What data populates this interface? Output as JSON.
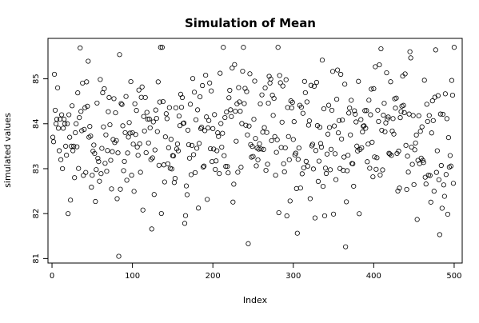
{
  "chart_data": {
    "type": "scatter",
    "title": "Simulation of Mean",
    "xlabel": "Index",
    "ylabel": "simulated values",
    "xlim": [
      -5,
      510
    ],
    "ylim": [
      80.9,
      85.9
    ],
    "x_ticks": [
      0,
      100,
      200,
      300,
      400,
      500
    ],
    "y_ticks": [
      81,
      82,
      83,
      84,
      85
    ],
    "grid": false,
    "point_style": "open-circle",
    "point_color": "#000000",
    "n_points": 500,
    "distribution_mean": 83.75,
    "y_sample": [
      83.7,
      83.6,
      85.1,
      84.3,
      84.0,
      84.1,
      84.8,
      83.9,
      83.4,
      84.1,
      83.2,
      84.2,
      83.0,
      83.9,
      84.1,
      84.0,
      83.5,
      83.3,
      84.0,
      82.0,
      84.2,
      83.7,
      82.3,
      83.5,
      84.4,
      83.4,
      83.5,
      82.8,
      83.8,
      84.0
    ]
  }
}
